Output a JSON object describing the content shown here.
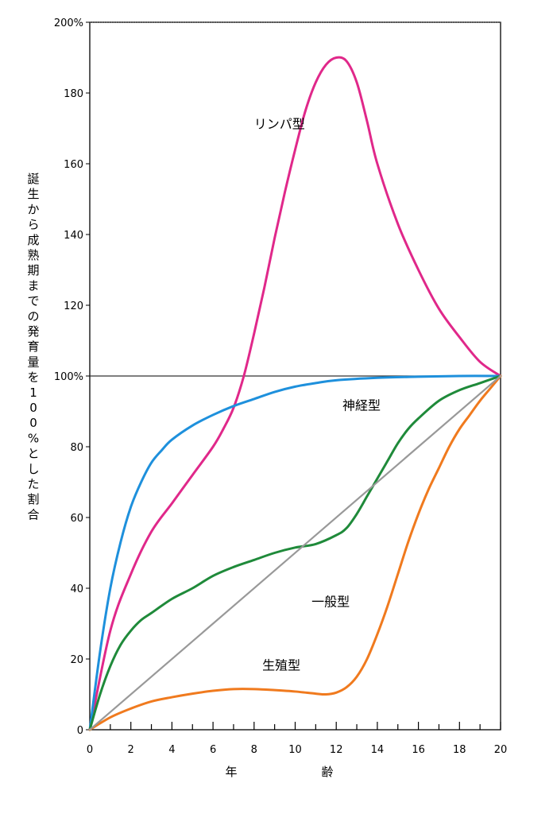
{
  "chart_data": {
    "type": "line",
    "ylabel": "誕生から成熟期までの発育量を100%とした割合",
    "xlabel_parts": [
      "年",
      "齢"
    ],
    "xlim": [
      0,
      20
    ],
    "ylim": [
      0,
      200
    ],
    "x_ticks": [
      0,
      2,
      4,
      6,
      8,
      10,
      12,
      14,
      16,
      18,
      20
    ],
    "y_ticks": [
      {
        "value": 0,
        "label": "0"
      },
      {
        "value": 20,
        "label": "20"
      },
      {
        "value": 40,
        "label": "40"
      },
      {
        "value": 60,
        "label": "60"
      },
      {
        "value": 80,
        "label": "80"
      },
      {
        "value": 100,
        "label": "100%"
      },
      {
        "value": 120,
        "label": "120"
      },
      {
        "value": 140,
        "label": "140"
      },
      {
        "value": 160,
        "label": "160"
      },
      {
        "value": 180,
        "label": "180"
      },
      {
        "value": 200,
        "label": "200%"
      }
    ],
    "reference_line": 100,
    "series": [
      {
        "name": "リンパ型",
        "color": "#e0288a",
        "label_at": [
          8.0,
          170
        ],
        "points": [
          [
            0,
            0
          ],
          [
            1,
            28
          ],
          [
            2,
            44
          ],
          [
            3,
            56
          ],
          [
            4,
            64
          ],
          [
            5,
            72
          ],
          [
            6,
            80
          ],
          [
            6.5,
            85
          ],
          [
            7,
            91
          ],
          [
            7.5,
            100
          ],
          [
            8,
            112
          ],
          [
            8.5,
            125
          ],
          [
            9,
            139
          ],
          [
            9.5,
            152
          ],
          [
            10,
            164
          ],
          [
            10.5,
            175
          ],
          [
            11,
            183
          ],
          [
            11.5,
            188
          ],
          [
            12,
            190
          ],
          [
            12.5,
            189
          ],
          [
            13,
            183
          ],
          [
            13.5,
            172
          ],
          [
            14,
            160
          ],
          [
            15,
            143
          ],
          [
            16,
            130
          ],
          [
            17,
            119
          ],
          [
            18,
            111
          ],
          [
            19,
            104
          ],
          [
            20,
            100
          ]
        ]
      },
      {
        "name": "神経型",
        "color": "#1e90dc",
        "label_at": [
          12.3,
          90.5
        ],
        "points": [
          [
            0,
            0
          ],
          [
            0.5,
            22
          ],
          [
            1,
            40
          ],
          [
            1.5,
            53
          ],
          [
            2,
            63
          ],
          [
            2.5,
            70
          ],
          [
            3,
            75.5
          ],
          [
            3.5,
            79
          ],
          [
            4,
            82
          ],
          [
            5,
            86
          ],
          [
            6,
            89
          ],
          [
            7,
            91.5
          ],
          [
            8,
            93.5
          ],
          [
            9,
            95.5
          ],
          [
            10,
            97
          ],
          [
            11,
            98
          ],
          [
            12,
            98.8
          ],
          [
            14,
            99.5
          ],
          [
            16,
            99.8
          ],
          [
            18,
            100
          ],
          [
            20,
            100
          ]
        ]
      },
      {
        "name": "一般型",
        "color": "#1f8a3a",
        "label_at": [
          10.8,
          35
        ],
        "points": [
          [
            0,
            0
          ],
          [
            0.5,
            10
          ],
          [
            1,
            18
          ],
          [
            1.5,
            24
          ],
          [
            2,
            28
          ],
          [
            2.5,
            31
          ],
          [
            3,
            33
          ],
          [
            4,
            37
          ],
          [
            5,
            40
          ],
          [
            6,
            43.5
          ],
          [
            7,
            46
          ],
          [
            8,
            48
          ],
          [
            9,
            50
          ],
          [
            10,
            51.5
          ],
          [
            11,
            52.5
          ],
          [
            12,
            55
          ],
          [
            12.5,
            57
          ],
          [
            13,
            61
          ],
          [
            13.5,
            66
          ],
          [
            14,
            71
          ],
          [
            14.5,
            76
          ],
          [
            15,
            81
          ],
          [
            15.5,
            85
          ],
          [
            16,
            88
          ],
          [
            17,
            93
          ],
          [
            18,
            96
          ],
          [
            19,
            98
          ],
          [
            20,
            100
          ]
        ]
      },
      {
        "name": "生殖型",
        "color": "#f07a1e",
        "label_at": [
          8.4,
          17
        ],
        "points": [
          [
            0,
            0
          ],
          [
            1,
            3.5
          ],
          [
            2,
            6
          ],
          [
            3,
            8
          ],
          [
            4,
            9.2
          ],
          [
            5,
            10.2
          ],
          [
            6,
            11
          ],
          [
            7,
            11.5
          ],
          [
            8,
            11.5
          ],
          [
            9,
            11.2
          ],
          [
            10,
            10.8
          ],
          [
            11,
            10.2
          ],
          [
            11.5,
            10
          ],
          [
            12,
            10.5
          ],
          [
            12.5,
            12
          ],
          [
            13,
            15
          ],
          [
            13.5,
            20
          ],
          [
            14,
            27
          ],
          [
            14.5,
            35
          ],
          [
            15,
            44
          ],
          [
            15.5,
            53
          ],
          [
            16,
            61
          ],
          [
            16.5,
            68
          ],
          [
            17,
            74
          ],
          [
            17.5,
            80
          ],
          [
            18,
            85
          ],
          [
            18.5,
            89
          ],
          [
            19,
            93
          ],
          [
            19.5,
            96.5
          ],
          [
            20,
            100
          ]
        ]
      },
      {
        "color": "#999999",
        "points": [
          [
            0,
            0
          ],
          [
            20,
            100
          ]
        ]
      }
    ]
  }
}
